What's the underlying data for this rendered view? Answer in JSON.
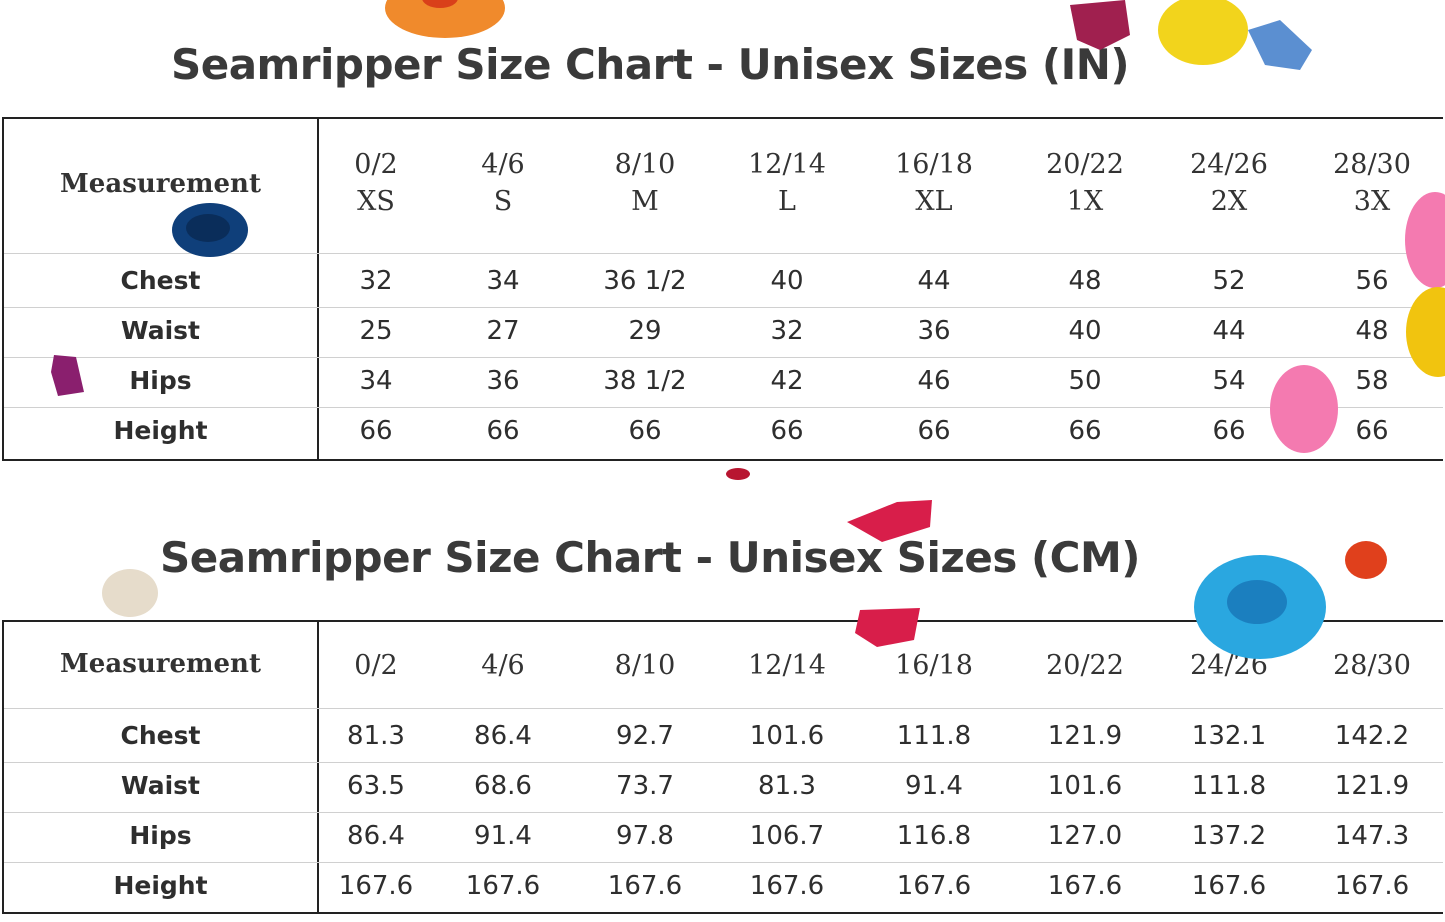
{
  "inch_chart": {
    "title": "Seamripper Size Chart - Unisex Sizes (IN)",
    "header_label": "Measurement",
    "sizes": [
      {
        "num": "0/2",
        "letter": "XS"
      },
      {
        "num": "4/6",
        "letter": "S"
      },
      {
        "num": "8/10",
        "letter": "M"
      },
      {
        "num": "12/14",
        "letter": "L"
      },
      {
        "num": "16/18",
        "letter": "XL"
      },
      {
        "num": "20/22",
        "letter": "1X"
      },
      {
        "num": "24/26",
        "letter": "2X"
      },
      {
        "num": "28/30",
        "letter": "3X"
      }
    ],
    "rows": [
      {
        "label": "Chest",
        "values": [
          "32",
          "34",
          "36 1/2",
          "40",
          "44",
          "48",
          "52",
          "56"
        ]
      },
      {
        "label": "Waist",
        "values": [
          "25",
          "27",
          "29",
          "32",
          "36",
          "40",
          "44",
          "48"
        ]
      },
      {
        "label": "Hips",
        "values": [
          "34",
          "36",
          "38 1/2",
          "42",
          "46",
          "50",
          "54",
          "58"
        ]
      },
      {
        "label": "Height",
        "values": [
          "66",
          "66",
          "66",
          "66",
          "66",
          "66",
          "66",
          "66"
        ]
      }
    ]
  },
  "cm_chart": {
    "title": "Seamripper Size Chart - Unisex Sizes (CM)",
    "header_label": "Measurement",
    "sizes": [
      "0/2",
      "4/6",
      "8/10",
      "12/14",
      "16/18",
      "20/22",
      "24/26",
      "28/30"
    ],
    "rows": [
      {
        "label": "Chest",
        "values": [
          "81.3",
          "86.4",
          "92.7",
          "101.6",
          "111.8",
          "121.9",
          "132.1",
          "142.2"
        ]
      },
      {
        "label": "Waist",
        "values": [
          "63.5",
          "68.6",
          "73.7",
          "81.3",
          "91.4",
          "101.6",
          "111.8",
          "121.9"
        ]
      },
      {
        "label": "Hips",
        "values": [
          "86.4",
          "91.4",
          "97.8",
          "106.7",
          "116.8",
          "127.0",
          "137.2",
          "147.3"
        ]
      },
      {
        "label": "Height",
        "values": [
          "167.6",
          "167.6",
          "167.6",
          "167.6",
          "167.6",
          "167.6",
          "167.6",
          "167.6"
        ]
      }
    ]
  },
  "decor_colors": [
    "#f08a2c",
    "#a0204f",
    "#f2d41c",
    "#5b8fd1",
    "#0f3f7a",
    "#8a1f6e",
    "#f47ab0",
    "#f1c40f",
    "#b81530",
    "#d81e4a",
    "#e6dccb",
    "#2aa7e0",
    "#e0401c"
  ]
}
